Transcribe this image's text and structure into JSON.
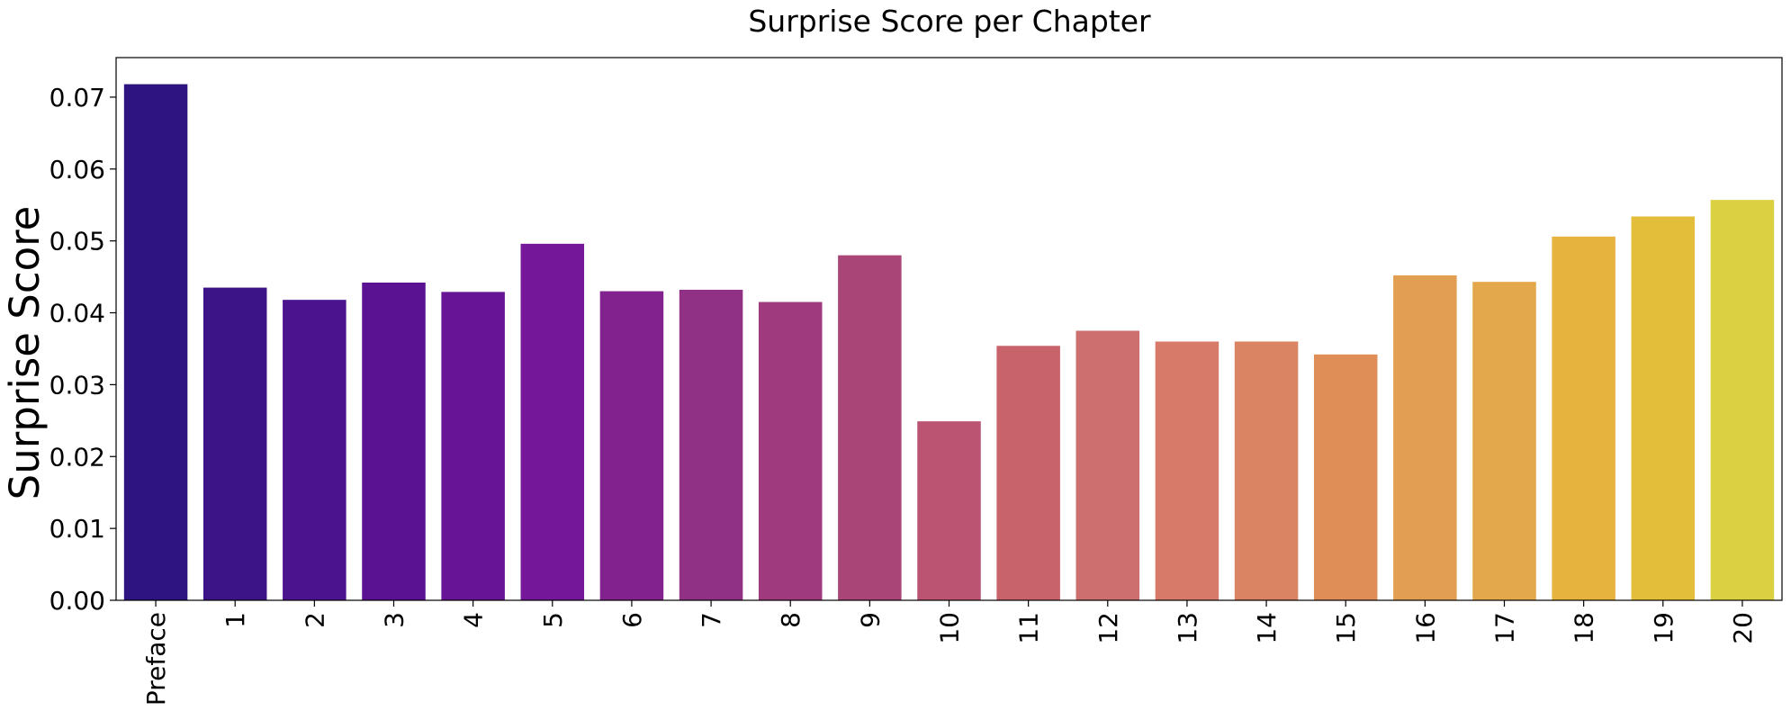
{
  "chart_data": {
    "type": "bar",
    "title": "Surprise Score per Chapter",
    "xlabel": "",
    "ylabel": "Surprise Score",
    "categories": [
      "Preface",
      "1",
      "2",
      "3",
      "4",
      "5",
      "6",
      "7",
      "8",
      "9",
      "10",
      "11",
      "12",
      "13",
      "14",
      "15",
      "16",
      "17",
      "18",
      "19",
      "20"
    ],
    "values": [
      0.0718,
      0.0435,
      0.0418,
      0.0442,
      0.0429,
      0.0496,
      0.043,
      0.0432,
      0.0415,
      0.048,
      0.0249,
      0.0354,
      0.0375,
      0.036,
      0.036,
      0.0342,
      0.0452,
      0.0443,
      0.0506,
      0.0534,
      0.0557
    ],
    "colors": [
      "#2d1480",
      "#3d1488",
      "#4b148e",
      "#5a1293",
      "#681496",
      "#741799",
      "#82228f",
      "#903186",
      "#9e3a7d",
      "#aa4677",
      "#ba5472",
      "#c8636c",
      "#cd6f6e",
      "#d77a69",
      "#db8464",
      "#df8e58",
      "#e29e53",
      "#e4a84c",
      "#e6b33e",
      "#e2be3b",
      "#dbd042"
    ],
    "ylim": [
      0,
      0.0755
    ],
    "yticks": [
      "0.00",
      "0.01",
      "0.02",
      "0.03",
      "0.04",
      "0.05",
      "0.06",
      "0.07"
    ],
    "grid": false,
    "legend": "none"
  }
}
